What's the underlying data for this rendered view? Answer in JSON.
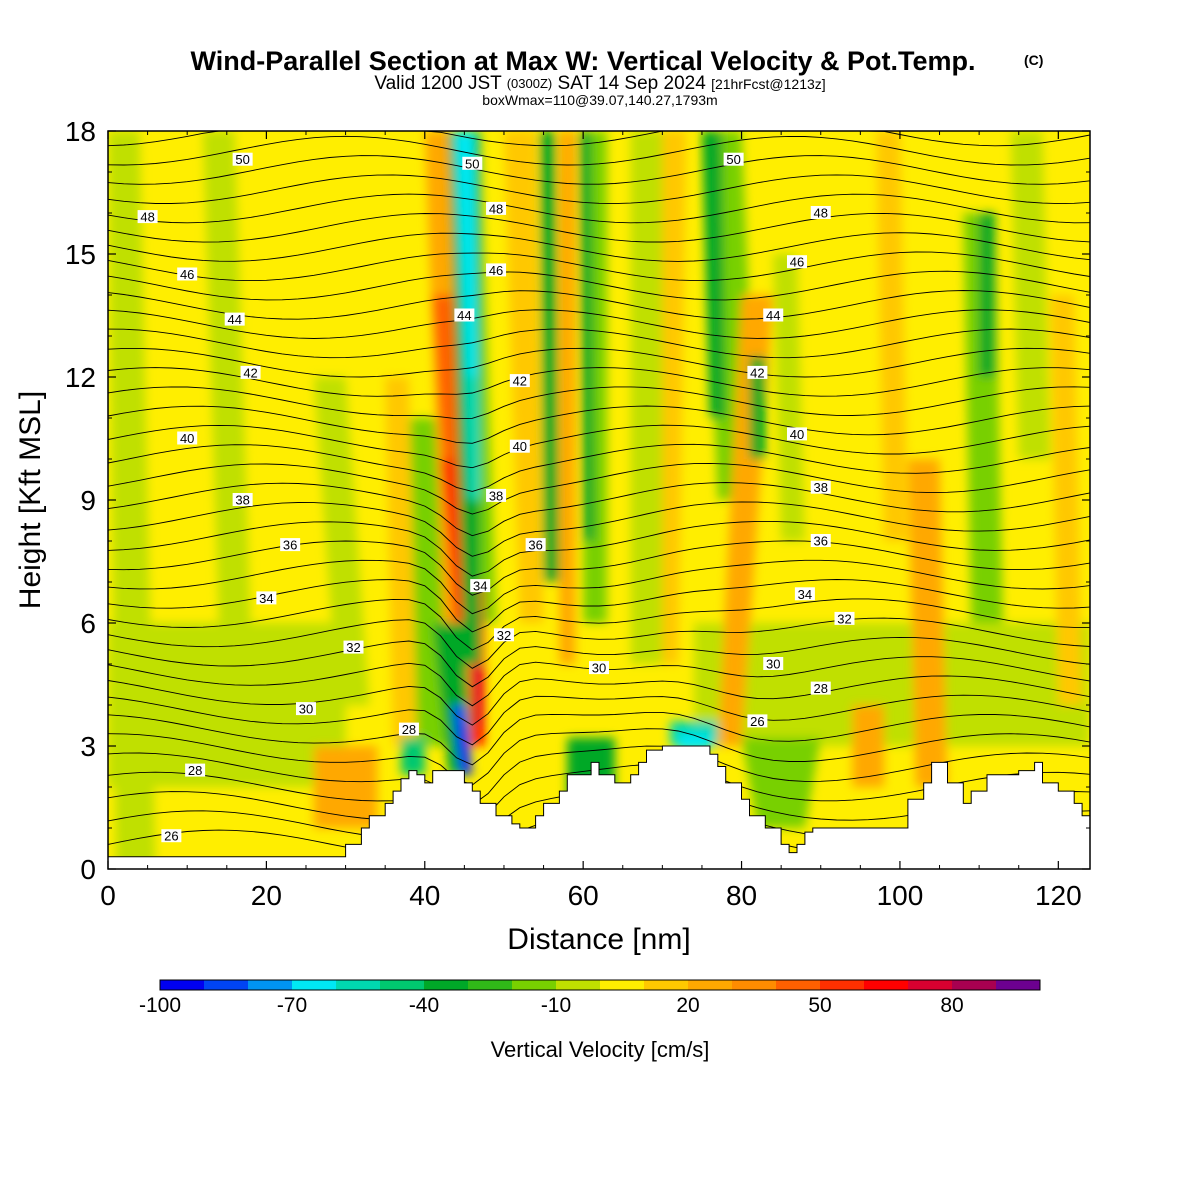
{
  "titles": {
    "main": "Wind-Parallel Section at Max W: Vertical Velocity & Pot.Temp.",
    "copyright": "(C)",
    "valid_prefix": "Valid 1200 JST",
    "valid_utc": "(0300Z)",
    "valid_date": "SAT 14 Sep 2024",
    "forecast": "[21hrFcst@1213z]",
    "box": "boxWmax=110@39.07,140.27,1793m"
  },
  "chart_data": {
    "type": "heatmap",
    "xlabel": "Distance [nm]",
    "ylabel": "Height [Kft MSL]",
    "xlim": [
      0,
      124
    ],
    "ylim": [
      0,
      18
    ],
    "x_ticks": [
      0,
      20,
      40,
      60,
      80,
      100,
      120
    ],
    "x_tick_labels": [
      "0",
      "20",
      "40",
      "60",
      "80",
      "100",
      "120"
    ],
    "y_ticks": [
      0,
      3,
      6,
      9,
      12,
      15,
      18
    ],
    "y_tick_labels": [
      "0",
      "3",
      "6",
      "9",
      "12",
      "15",
      "18"
    ],
    "colorbar": {
      "title": "Vertical Velocity [cm/s]",
      "tick_labels": [
        "-100",
        "-70",
        "-40",
        "-10",
        "20",
        "50",
        "80"
      ],
      "colors": [
        "#0000f0",
        "#0044f4",
        "#0094f2",
        "#00e8f4",
        "#00d8b0",
        "#00c870",
        "#00a828",
        "#30b818",
        "#78d000",
        "#c0e000",
        "#ffee00",
        "#ffc800",
        "#ffa800",
        "#ff8c00",
        "#ff6000",
        "#ff3000",
        "#ff0000",
        "#d80030",
        "#a80050",
        "#6c0090"
      ]
    },
    "terrain": {
      "x": [
        0,
        30,
        30,
        32,
        32,
        33,
        33,
        35,
        35,
        36,
        36,
        37,
        37,
        38,
        38,
        39,
        39,
        40,
        40,
        41,
        41,
        45,
        45,
        46,
        46,
        47,
        47,
        49,
        49,
        51,
        51,
        52,
        52,
        53,
        53,
        54,
        54,
        55,
        55,
        57,
        57,
        58,
        58,
        61,
        61,
        62,
        62,
        64,
        64,
        66,
        66,
        67,
        67,
        68,
        68,
        70,
        70,
        71,
        71,
        73,
        73,
        74,
        74,
        76,
        76,
        77,
        77,
        78,
        78,
        80,
        80,
        81,
        81,
        83,
        83,
        85,
        85,
        86,
        86,
        87,
        87,
        88,
        88,
        89,
        89,
        90,
        90,
        91,
        91,
        101,
        101,
        103,
        103,
        104,
        104,
        106,
        106,
        108,
        108,
        109,
        109,
        111,
        111,
        113,
        113,
        115,
        115,
        117,
        117,
        118,
        118,
        120,
        120,
        122,
        122,
        123,
        123,
        124
      ],
      "y": [
        0.3,
        0.3,
        0.6,
        0.6,
        1.0,
        1.0,
        1.3,
        1.3,
        1.6,
        1.6,
        1.9,
        1.9,
        2.2,
        2.2,
        2.4,
        2.4,
        2.3,
        2.3,
        2.1,
        2.1,
        2.4,
        2.4,
        2.1,
        2.1,
        1.9,
        1.9,
        1.6,
        1.6,
        1.3,
        1.3,
        1.1,
        1.1,
        1.0,
        1.0,
        1.0,
        1.0,
        1.3,
        1.3,
        1.6,
        1.6,
        1.9,
        1.9,
        2.3,
        2.3,
        2.6,
        2.6,
        2.3,
        2.3,
        2.1,
        2.1,
        2.3,
        2.3,
        2.6,
        2.6,
        2.9,
        2.9,
        3.0,
        3.0,
        3.0,
        3.0,
        3.0,
        3.0,
        3.0,
        3.0,
        2.8,
        2.8,
        2.5,
        2.5,
        2.1,
        2.1,
        1.7,
        1.7,
        1.3,
        1.3,
        1.0,
        1.0,
        0.6,
        0.6,
        0.4,
        0.4,
        0.6,
        0.6,
        0.9,
        0.9,
        1.0,
        1.0,
        1.0,
        1.0,
        1.0,
        1.0,
        1.7,
        1.7,
        2.1,
        2.1,
        2.6,
        2.6,
        2.1,
        2.1,
        1.6,
        1.6,
        1.9,
        1.9,
        2.3,
        2.3,
        2.3,
        2.3,
        2.4,
        2.4,
        2.6,
        2.6,
        2.1,
        2.1,
        1.9,
        1.9,
        1.6,
        1.6,
        1.3,
        1.3
      ]
    },
    "contour_labels": [
      {
        "text": "50",
        "x": 17,
        "y": 17.3
      },
      {
        "text": "48",
        "x": 5,
        "y": 15.9
      },
      {
        "text": "46",
        "x": 10,
        "y": 14.5
      },
      {
        "text": "44",
        "x": 16,
        "y": 13.4
      },
      {
        "text": "42",
        "x": 18,
        "y": 12.1
      },
      {
        "text": "40",
        "x": 10,
        "y": 10.5
      },
      {
        "text": "38",
        "x": 17,
        "y": 9.0
      },
      {
        "text": "36",
        "x": 23,
        "y": 7.9
      },
      {
        "text": "34",
        "x": 20,
        "y": 6.6
      },
      {
        "text": "32",
        "x": 31,
        "y": 5.4
      },
      {
        "text": "30",
        "x": 25,
        "y": 3.9
      },
      {
        "text": "28",
        "x": 11,
        "y": 2.4
      },
      {
        "text": "26",
        "x": 8,
        "y": 0.8
      },
      {
        "text": "28",
        "x": 38,
        "y": 3.4
      },
      {
        "text": "50",
        "x": 46,
        "y": 17.2
      },
      {
        "text": "48",
        "x": 49,
        "y": 16.1
      },
      {
        "text": "46",
        "x": 49,
        "y": 14.6
      },
      {
        "text": "44",
        "x": 45,
        "y": 13.5
      },
      {
        "text": "42",
        "x": 52,
        "y": 11.9
      },
      {
        "text": "40",
        "x": 52,
        "y": 10.3
      },
      {
        "text": "38",
        "x": 49,
        "y": 9.1
      },
      {
        "text": "36",
        "x": 54,
        "y": 7.9
      },
      {
        "text": "34",
        "x": 47,
        "y": 6.9
      },
      {
        "text": "32",
        "x": 50,
        "y": 5.7
      },
      {
        "text": "30",
        "x": 62,
        "y": 4.9
      },
      {
        "text": "50",
        "x": 79,
        "y": 17.3
      },
      {
        "text": "48",
        "x": 90,
        "y": 16.0
      },
      {
        "text": "46",
        "x": 87,
        "y": 14.8
      },
      {
        "text": "44",
        "x": 84,
        "y": 13.5
      },
      {
        "text": "42",
        "x": 82,
        "y": 12.1
      },
      {
        "text": "40",
        "x": 87,
        "y": 10.6
      },
      {
        "text": "38",
        "x": 90,
        "y": 9.3
      },
      {
        "text": "36",
        "x": 90,
        "y": 8.0
      },
      {
        "text": "34",
        "x": 88,
        "y": 6.7
      },
      {
        "text": "32",
        "x": 93,
        "y": 6.1
      },
      {
        "text": "30",
        "x": 84,
        "y": 5.0
      },
      {
        "text": "28",
        "x": 90,
        "y": 4.4
      },
      {
        "text": "26",
        "x": 82,
        "y": 3.6
      }
    ],
    "grid": false,
    "legend": "bottom"
  }
}
